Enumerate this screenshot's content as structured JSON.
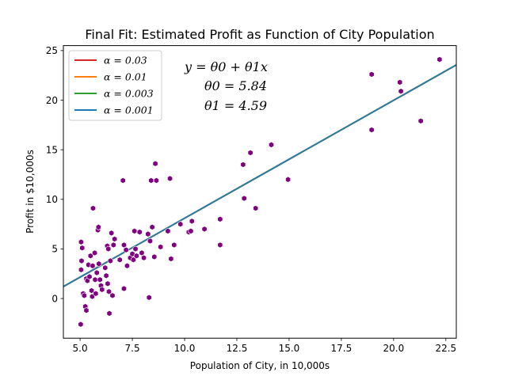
{
  "chart_data": {
    "type": "scatter",
    "title": "Final Fit: Estimated Profit as Function of City Population",
    "xlabel": "Population of City, in 10,000s",
    "ylabel": "Profit in $10,000s",
    "xlim": [
      4.2,
      23.0
    ],
    "ylim": [
      -4,
      25.5
    ],
    "xticks": [
      5.0,
      7.5,
      10.0,
      12.5,
      15.0,
      17.5,
      20.0,
      22.5
    ],
    "xtick_labels": [
      "5.0",
      "7.5",
      "10.0",
      "12.5",
      "15.0",
      "17.5",
      "20.0",
      "22.5"
    ],
    "yticks": [
      0,
      5,
      10,
      15,
      20,
      25
    ],
    "ytick_labels": [
      "0",
      "5",
      "10",
      "15",
      "20",
      "25"
    ],
    "grid": false,
    "legend_position": "top-left",
    "annotation": {
      "line1": "y = θ0 + θ1x",
      "line2": "θ0 = 5.84",
      "line3": "θ1 = 4.59"
    },
    "point_color": "#800080",
    "lines": [
      {
        "name": "α = 0.03",
        "color": "#d62728",
        "x": [
          4.2,
          23.0
        ],
        "y": [
          1.2,
          23.55
        ]
      },
      {
        "name": "α = 0.01",
        "color": "#ff7f0e",
        "x": [
          4.2,
          23.0
        ],
        "y": [
          1.2,
          23.55
        ]
      },
      {
        "name": "α = 0.003",
        "color": "#2ca02c",
        "x": [
          4.2,
          23.0
        ],
        "y": [
          1.2,
          23.55
        ]
      },
      {
        "name": "α = 0.001",
        "color": "#1f77b4",
        "x": [
          4.2,
          23.0
        ],
        "y": [
          1.2,
          23.55
        ]
      }
    ],
    "points": [
      [
        5.03,
        -2.6
      ],
      [
        5.05,
        5.7
      ],
      [
        5.07,
        3.8
      ],
      [
        5.1,
        5.1
      ],
      [
        5.05,
        2.9
      ],
      [
        5.15,
        0.5
      ],
      [
        5.25,
        -0.8
      ],
      [
        5.3,
        -1.2
      ],
      [
        5.2,
        0.3
      ],
      [
        5.3,
        2.0
      ],
      [
        5.35,
        1.8
      ],
      [
        5.4,
        3.4
      ],
      [
        5.45,
        2.2
      ],
      [
        5.5,
        4.3
      ],
      [
        5.55,
        0.8
      ],
      [
        5.58,
        0.2
      ],
      [
        5.6,
        3.3
      ],
      [
        5.62,
        9.1
      ],
      [
        5.7,
        4.6
      ],
      [
        5.72,
        1.9
      ],
      [
        5.75,
        0.5
      ],
      [
        5.8,
        2.6
      ],
      [
        5.85,
        6.9
      ],
      [
        5.88,
        7.2
      ],
      [
        5.9,
        3.5
      ],
      [
        5.95,
        1.9
      ],
      [
        6.0,
        1.3
      ],
      [
        6.05,
        0.9
      ],
      [
        6.2,
        3.1
      ],
      [
        6.25,
        2.3
      ],
      [
        6.3,
        5.3
      ],
      [
        6.32,
        1.5
      ],
      [
        6.35,
        5.0
      ],
      [
        6.38,
        0.7
      ],
      [
        6.4,
        -1.5
      ],
      [
        6.45,
        3.8
      ],
      [
        6.5,
        6.6
      ],
      [
        6.55,
        0.3
      ],
      [
        6.6,
        5.4
      ],
      [
        6.65,
        6.0
      ],
      [
        6.9,
        3.9
      ],
      [
        7.05,
        11.9
      ],
      [
        7.1,
        1.0
      ],
      [
        7.1,
        5.4
      ],
      [
        7.2,
        4.9
      ],
      [
        7.25,
        3.3
      ],
      [
        7.4,
        4.1
      ],
      [
        7.5,
        4.5
      ],
      [
        7.55,
        3.9
      ],
      [
        7.6,
        6.8
      ],
      [
        7.65,
        5.0
      ],
      [
        7.7,
        4.3
      ],
      [
        7.85,
        6.7
      ],
      [
        7.95,
        4.6
      ],
      [
        8.05,
        4.1
      ],
      [
        8.25,
        6.5
      ],
      [
        8.3,
        0.1
      ],
      [
        8.35,
        5.8
      ],
      [
        8.4,
        11.9
      ],
      [
        8.45,
        7.2
      ],
      [
        8.55,
        4.2
      ],
      [
        8.6,
        13.6
      ],
      [
        8.65,
        11.9
      ],
      [
        8.85,
        5.2
      ],
      [
        9.2,
        6.8
      ],
      [
        9.3,
        12.1
      ],
      [
        9.35,
        4.0
      ],
      [
        9.5,
        5.4
      ],
      [
        9.8,
        7.5
      ],
      [
        10.2,
        6.7
      ],
      [
        10.3,
        6.8
      ],
      [
        10.35,
        7.8
      ],
      [
        10.95,
        7.0
      ],
      [
        11.7,
        8.0
      ],
      [
        11.7,
        5.4
      ],
      [
        12.8,
        13.5
      ],
      [
        12.85,
        10.1
      ],
      [
        13.15,
        14.7
      ],
      [
        13.4,
        9.1
      ],
      [
        14.15,
        15.5
      ],
      [
        14.95,
        12.0
      ],
      [
        18.95,
        22.6
      ],
      [
        18.95,
        17.0
      ],
      [
        20.3,
        21.8
      ],
      [
        20.35,
        20.9
      ],
      [
        21.3,
        17.9
      ],
      [
        22.2,
        24.1
      ]
    ]
  }
}
